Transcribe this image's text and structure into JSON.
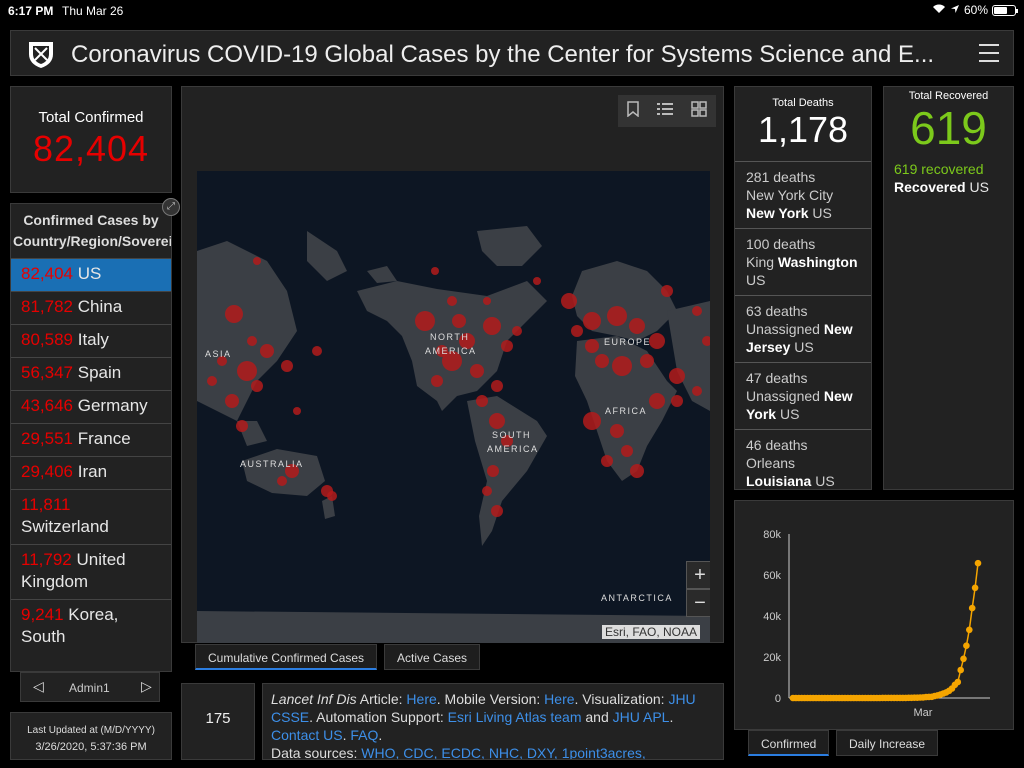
{
  "status_bar": {
    "time": "6:17 PM",
    "date": "Thu Mar 26",
    "battery": "60%"
  },
  "header": {
    "title": "Coronavirus COVID-19 Global Cases by the Center for Systems Science and E..."
  },
  "total_confirmed": {
    "label": "Total Confirmed",
    "value": "82,404"
  },
  "countries": {
    "heading": "Confirmed Cases by Country/Region/Sovereignty",
    "items": [
      {
        "num": "82,404",
        "name": "US",
        "selected": true
      },
      {
        "num": "81,782",
        "name": "China"
      },
      {
        "num": "80,589",
        "name": "Italy"
      },
      {
        "num": "56,347",
        "name": "Spain"
      },
      {
        "num": "43,646",
        "name": "Germany"
      },
      {
        "num": "29,551",
        "name": "France"
      },
      {
        "num": "29,406",
        "name": "Iran"
      },
      {
        "num": "11,811",
        "name": "Switzerland"
      },
      {
        "num": "11,792",
        "name": "United Kingdom"
      },
      {
        "num": "9,241",
        "name": "Korea, South"
      }
    ],
    "pager_label": "Admin1"
  },
  "last_updated": {
    "label": "Last Updated at (M/D/YYYY)",
    "value": "3/26/2020, 5:37:36 PM"
  },
  "map": {
    "labels": {
      "asia": "ASIA",
      "north_america_1": "NORTH",
      "north_america_2": "AMERICA",
      "europe": "EUROPE",
      "africa": "AFRICA",
      "south_america_1": "SOUTH",
      "south_america_2": "AMERICA",
      "australia": "AUSTRALIA",
      "antarctica": "ANTARCTICA"
    },
    "attribution": "Esri, FAO, NOAA",
    "zoom_in": "+",
    "zoom_out": "−",
    "tabs": [
      "Cumulative Confirmed Cases",
      "Active Cases"
    ]
  },
  "countries_count": {
    "value": "175"
  },
  "info": {
    "journal": "Lancet Inf Dis",
    "article": "Article:",
    "here1": "Here",
    "mobile": ". Mobile Version:",
    "here2": "Here",
    "viz": ". Visualization:",
    "jhu_csse": "JHU CSSE",
    "automation": ". Automation Support:",
    "living_atlas": "Esri Living Atlas team",
    "and": "and",
    "jhu_apl": "JHU APL",
    "dot": ".",
    "contact": "Contact US",
    "faq": "FAQ",
    "sources_label": "Data sources:",
    "sources": "WHO, CDC, ECDC, NHC, DXY, 1point3acres,"
  },
  "deaths": {
    "label": "Total Deaths",
    "value": "1,178",
    "items": [
      {
        "count": "281 deaths",
        "place": "New York City",
        "region": "New York",
        "country": "US"
      },
      {
        "count": "100 deaths",
        "place": "King",
        "region": "Washington",
        "country": "US"
      },
      {
        "count": "63 deaths",
        "place": "Unassigned",
        "region": "New Jersey",
        "country": "US"
      },
      {
        "count": "47 deaths",
        "place": "Unassigned",
        "region": "New York",
        "country": "US"
      },
      {
        "count": "46 deaths",
        "place": "Orleans",
        "region": "Louisiana",
        "country": "US"
      }
    ]
  },
  "recovered": {
    "label": "Total Recovered",
    "value": "619",
    "sub_value": "619 recovered",
    "sub_word": "Recovered",
    "sub_country": "US"
  },
  "chart_tabs": [
    "Confirmed",
    "Daily Increase"
  ],
  "colors": {
    "confirmed": "#e60000",
    "recovered": "#7cc91b",
    "chart": "#f5a500",
    "selected": "#1a6fb4",
    "link": "#3d8fe8"
  },
  "chart_data": {
    "type": "line",
    "xlabel": "",
    "ylabel": "",
    "x_tick_labels": [
      "Mar"
    ],
    "y_tick_labels": [
      "0",
      "20k",
      "40k",
      "60k",
      "80k"
    ],
    "ylim": [
      0,
      80000
    ],
    "series": [
      {
        "values": [
          1,
          1,
          2,
          2,
          5,
          5,
          5,
          5,
          5,
          6,
          6,
          8,
          8,
          8,
          11,
          11,
          11,
          12,
          12,
          12,
          12,
          12,
          13,
          13,
          14,
          14,
          14,
          14,
          14,
          15,
          15,
          35,
          35,
          35,
          53,
          53,
          59,
          60,
          62,
          70,
          76,
          101,
          122,
          153,
          221,
          278,
          417,
          537,
          605,
          959,
          1281,
          1663,
          2179,
          2727,
          3499,
          4632,
          6421,
          7786,
          13680,
          19101,
          25493,
          33276,
          43847,
          53740,
          65778
        ]
      }
    ]
  }
}
